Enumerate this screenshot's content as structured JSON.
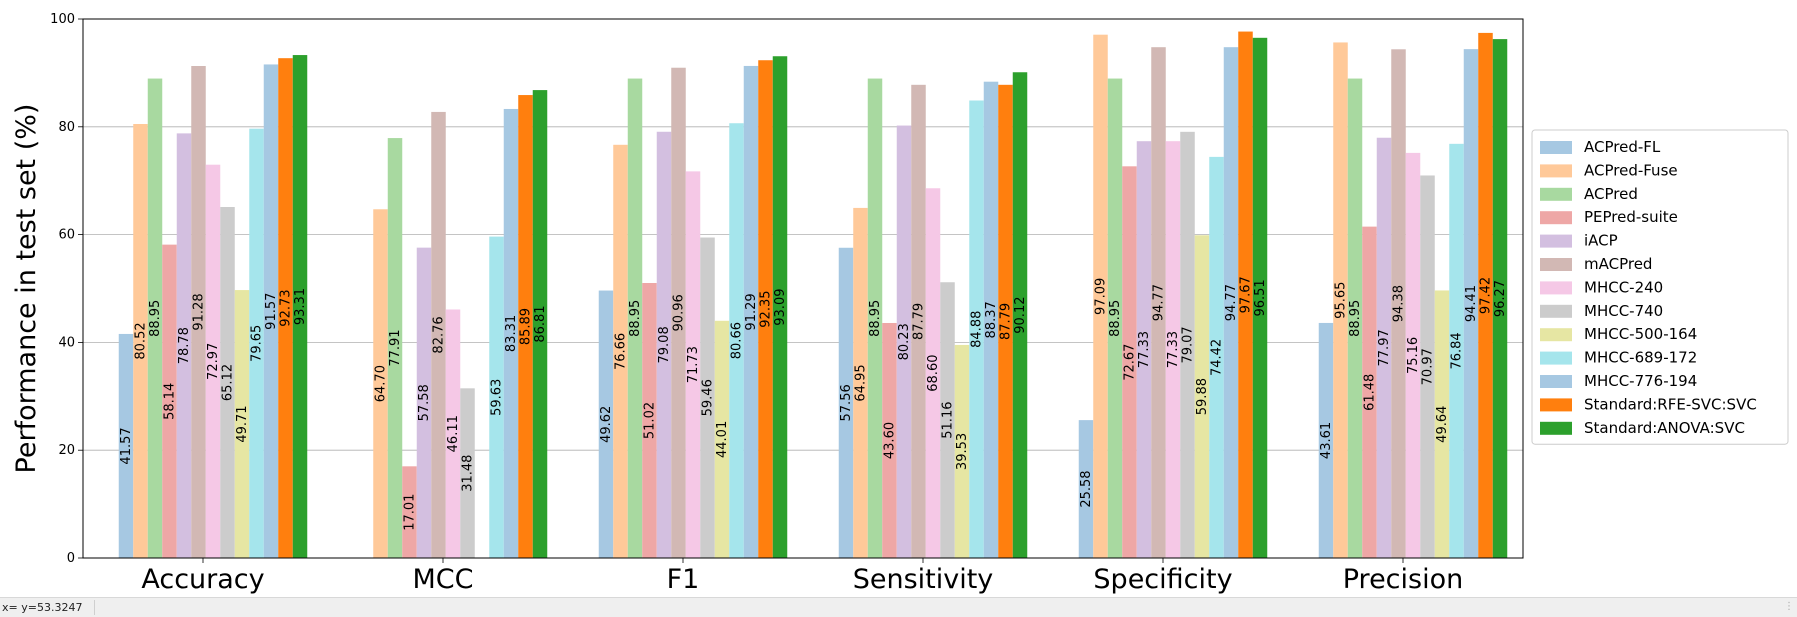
{
  "chart_data": {
    "type": "bar",
    "title": "",
    "xlabel": "",
    "ylabel": "Performance in test set (%)",
    "ylim": [
      0,
      100
    ],
    "yticks": [
      "0",
      "20",
      "40",
      "60",
      "80",
      "100"
    ],
    "grid": "horizontal",
    "legend_position": "right",
    "categories": [
      "Accuracy",
      "MCC",
      "F1",
      "Sensitivity",
      "Specificity",
      "Precision"
    ],
    "series": [
      {
        "name": "ACPred-FL",
        "color": "#a6c8e2",
        "values": [
          41.57,
          null,
          49.62,
          57.56,
          25.58,
          43.61
        ],
        "labels": [
          "41.57",
          "",
          "49.62",
          "57.56",
          "25.58",
          "43.61"
        ]
      },
      {
        "name": "ACPred-Fuse",
        "color": "#ffc999",
        "values": [
          80.52,
          64.7,
          76.66,
          64.95,
          97.09,
          95.65
        ],
        "labels": [
          "80.52",
          "64.70",
          "76.66",
          "64.95",
          "97.09",
          "95.65"
        ]
      },
      {
        "name": "ACPred",
        "color": "#a8d9a0",
        "values": [
          88.95,
          77.91,
          88.95,
          88.95,
          88.95,
          88.95
        ],
        "labels": [
          "88.95",
          "77.91",
          "88.95",
          "88.95",
          "88.95",
          "88.95"
        ]
      },
      {
        "name": "PEPred-suite",
        "color": "#eea7a6",
        "values": [
          58.14,
          17.01,
          51.02,
          43.6,
          72.67,
          61.48
        ],
        "labels": [
          "58.14",
          "17.01",
          "51.02",
          "43.60",
          "72.67",
          "61.48"
        ]
      },
      {
        "name": "iACP",
        "color": "#d3bfe0",
        "values": [
          78.78,
          57.58,
          79.08,
          80.23,
          77.33,
          77.97
        ],
        "labels": [
          "78.78",
          "57.58",
          "79.08",
          "80.23",
          "77.33",
          "77.97"
        ]
      },
      {
        "name": "mACPred",
        "color": "#d2b8b4",
        "values": [
          91.28,
          82.76,
          90.96,
          87.79,
          94.77,
          94.38
        ],
        "labels": [
          "91.28",
          "82.76",
          "90.96",
          "87.79",
          "94.77",
          "94.38"
        ]
      },
      {
        "name": "MHCC-240",
        "color": "#f5c8e6",
        "values": [
          72.97,
          46.11,
          71.73,
          68.6,
          77.33,
          75.16
        ],
        "labels": [
          "72.97",
          "46.11",
          "71.73",
          "68.60",
          "77.33",
          "75.16"
        ]
      },
      {
        "name": "MHCC-740",
        "color": "#cccccc",
        "values": [
          65.12,
          31.48,
          59.46,
          51.16,
          79.07,
          70.97
        ],
        "labels": [
          "65.12",
          "31.48",
          "59.46",
          "51.16",
          "79.07",
          "70.97"
        ]
      },
      {
        "name": "MHCC-500-164",
        "color": "#e6e6a3",
        "values": [
          49.71,
          null,
          44.01,
          39.53,
          59.88,
          49.64
        ],
        "labels": [
          "49.71",
          "",
          "44.01",
          "39.53",
          "59.88",
          "49.64"
        ]
      },
      {
        "name": "MHCC-689-172",
        "color": "#a5e5ec",
        "values": [
          79.65,
          59.63,
          80.66,
          84.88,
          74.42,
          76.84
        ],
        "labels": [
          "79.65",
          "59.63",
          "80.66",
          "84.88",
          "74.42",
          "76.84"
        ]
      },
      {
        "name": "MHCC-776-194",
        "color": "#a6c8e2",
        "values": [
          91.57,
          83.31,
          91.29,
          88.37,
          94.77,
          94.41
        ],
        "labels": [
          "91.57",
          "83.31",
          "91.29",
          "88.37",
          "94.77",
          "94.41"
        ]
      },
      {
        "name": "Standard:RFE-SVC:SVC",
        "color": "#ff7f0e",
        "values": [
          92.73,
          85.89,
          92.35,
          87.79,
          97.67,
          97.42
        ],
        "labels": [
          "92.73",
          "85.89",
          "92.35",
          "87.79",
          "97.67",
          "97.42"
        ]
      },
      {
        "name": "Standard:ANOVA:SVC",
        "color": "#2ca02c",
        "values": [
          93.31,
          86.81,
          93.09,
          90.12,
          96.51,
          96.27
        ],
        "labels": [
          "93.31",
          "86.81",
          "93.09",
          "90.12",
          "96.51",
          "96.27"
        ]
      }
    ]
  },
  "statusbar": {
    "coordinate_text": "x= y=53.3247"
  }
}
